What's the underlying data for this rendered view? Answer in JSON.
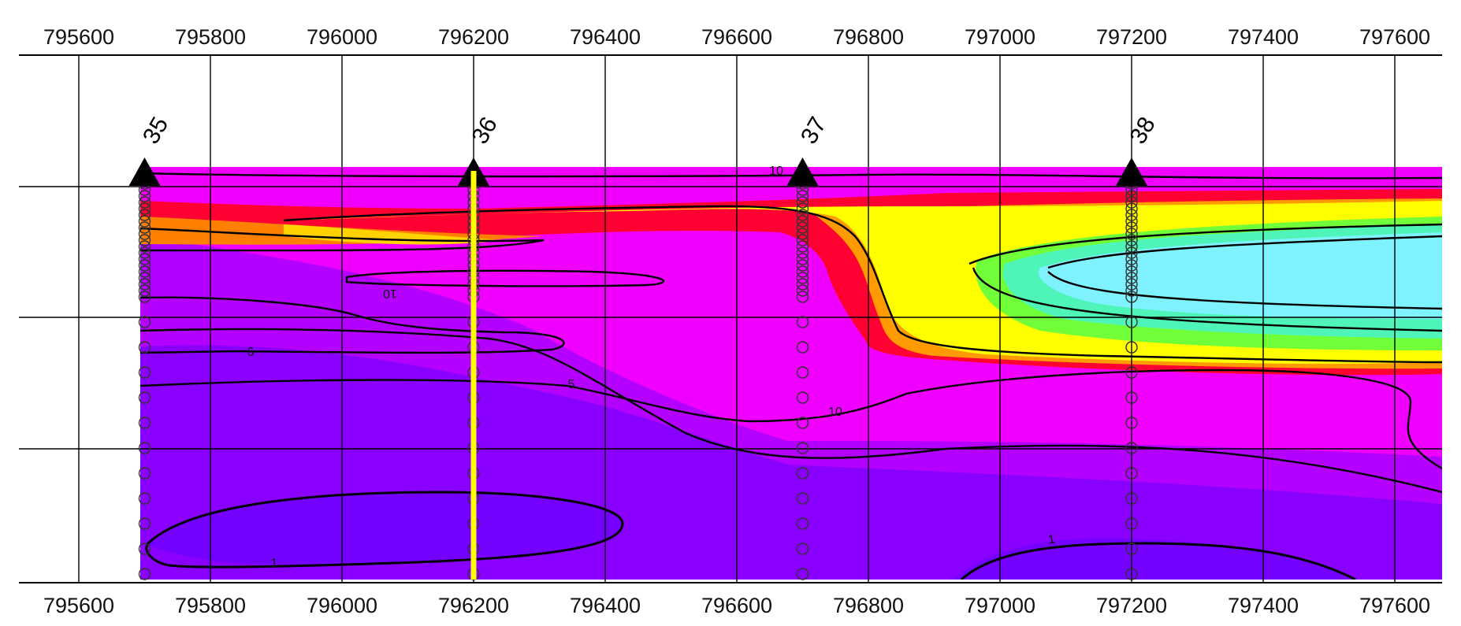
{
  "chart_data": {
    "type": "heatmap",
    "x_axis": {
      "ticks": [
        795600,
        795800,
        796000,
        796200,
        796400,
        796600,
        796800,
        797000,
        797200,
        797400,
        797600
      ],
      "range": [
        795560,
        797700
      ]
    },
    "stations": [
      {
        "label": "35",
        "x": 795700
      },
      {
        "label": "36",
        "x": 796200
      },
      {
        "label": "37",
        "x": 796700
      },
      {
        "label": "38",
        "x": 797200
      }
    ],
    "highlighted_profile_x": 796200,
    "contour_labels": [
      "10",
      "6",
      "5",
      "10",
      "1",
      "1",
      "10"
    ],
    "color_scale": [
      "#7b00ff",
      "#a000ff",
      "#cc00ff",
      "#ff00ff",
      "#ff0000",
      "#ff8c00",
      "#ffff00",
      "#7dff3c",
      "#5effc8",
      "#7ef4ff"
    ],
    "grid": true
  }
}
